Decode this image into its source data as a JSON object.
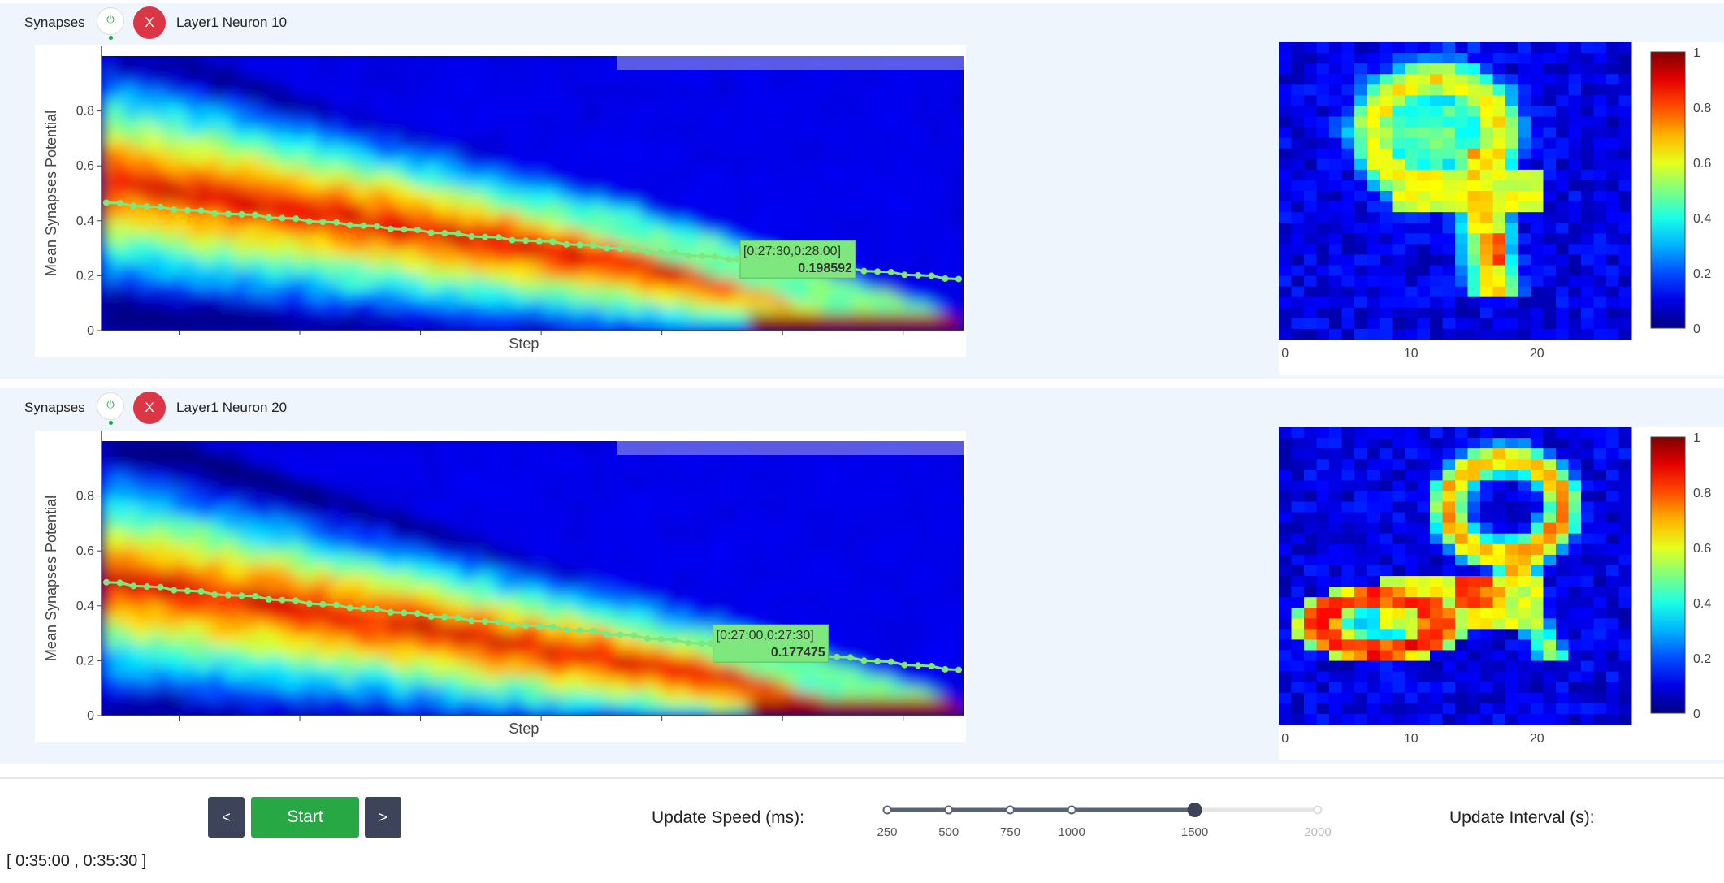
{
  "panels": [
    {
      "label": "Synapses",
      "power_glyph": "⏻",
      "close_label": "X",
      "title": "Layer1 Neuron 10",
      "tooltip_range": "[0:27:30,0:28:00]",
      "tooltip_value": "0.198592",
      "chart_data": {
        "type": "heatmap",
        "ylabel": "Mean Synapses Potential",
        "xlabel": "Step",
        "ylim": [
          0,
          1
        ],
        "yticks": [
          0,
          0.2,
          0.4,
          0.6,
          0.8
        ],
        "mean_line": {
          "y_start": 0.466,
          "y_end": 0.188,
          "highlighted_value": 0.198592
        }
      },
      "image_data": {
        "type": "heatmap",
        "depicts": "digit-9",
        "xticks": [
          0,
          10,
          20
        ],
        "colorbar_ticks": [
          0,
          0.2,
          0.4,
          0.6,
          0.8,
          1
        ]
      }
    },
    {
      "label": "Synapses",
      "power_glyph": "⏻",
      "close_label": "X",
      "title": "Layer1 Neuron 20",
      "tooltip_range": "[0:27:00,0:27:30]",
      "tooltip_value": "0.177475",
      "chart_data": {
        "type": "heatmap",
        "ylabel": "Mean Synapses Potential",
        "xlabel": "Step",
        "ylim": [
          0,
          1
        ],
        "yticks": [
          0,
          0.2,
          0.4,
          0.6,
          0.8
        ],
        "mean_line": {
          "y_start": 0.486,
          "y_end": 0.167,
          "highlighted_value": 0.177475
        }
      },
      "image_data": {
        "type": "heatmap",
        "depicts": "digit-2",
        "xticks": [
          0,
          10,
          20
        ],
        "colorbar_ticks": [
          0,
          0.2,
          0.4,
          0.6,
          0.8,
          1
        ]
      }
    }
  ],
  "controls": {
    "prev_label": "<",
    "start_label": "Start",
    "next_label": ">",
    "speed_label": "Update Speed (ms):",
    "interval_label": "Update Interval (s):",
    "speed_options": [
      "250",
      "500",
      "750",
      "1000",
      "1500",
      "2000"
    ],
    "speed_value": 1500,
    "current_range": "[ 0:35:00 , 0:35:30 ]"
  },
  "colors": {
    "accent_green": "#28a745",
    "danger_red": "#dc3545",
    "nav_dark": "#3d4459",
    "line_green": "#7ee87e"
  }
}
